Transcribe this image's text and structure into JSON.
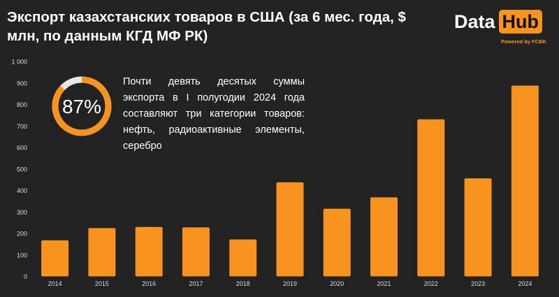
{
  "title": "Экспорт казахстанских товаров в США (за 6 мес. года, $ млн, по данным КГД МФ РК)",
  "logo": {
    "word1": "Data",
    "word2": "Hub",
    "powered": "Powered by FCBK"
  },
  "colors": {
    "background": "#222222",
    "bar": "#f7931e",
    "ring_track": "#e8e8e8",
    "text": "#ffffff",
    "axis_text": "#dddddd"
  },
  "annotation": {
    "percent_value": 87,
    "percent_label": "87%",
    "text": "Почти девять десятых суммы экспорта в I полугодии 2024 года составляют три категории товаров: нефть, радиоактивные элементы, серебро"
  },
  "chart_data": {
    "type": "bar",
    "title": "Экспорт казахстанских товаров в США (за 6 мес. года, $ млн, по данным КГД МФ РК)",
    "xlabel": "",
    "ylabel": "",
    "categories": [
      "2014",
      "2015",
      "2016",
      "2017",
      "2018",
      "2019",
      "2020",
      "2021",
      "2022",
      "2023",
      "2024"
    ],
    "values": [
      168,
      225,
      230,
      228,
      172,
      438,
      315,
      368,
      731,
      456,
      888
    ],
    "ylim": [
      0,
      1000
    ],
    "yticks": [
      0,
      100,
      200,
      300,
      400,
      500,
      600,
      700,
      800,
      900,
      1000
    ],
    "ytick_labels": [
      "0",
      "100",
      "200",
      "300",
      "400",
      "500",
      "600",
      "700",
      "800",
      "900",
      "1 000"
    ],
    "grid": false,
    "legend": "none"
  }
}
